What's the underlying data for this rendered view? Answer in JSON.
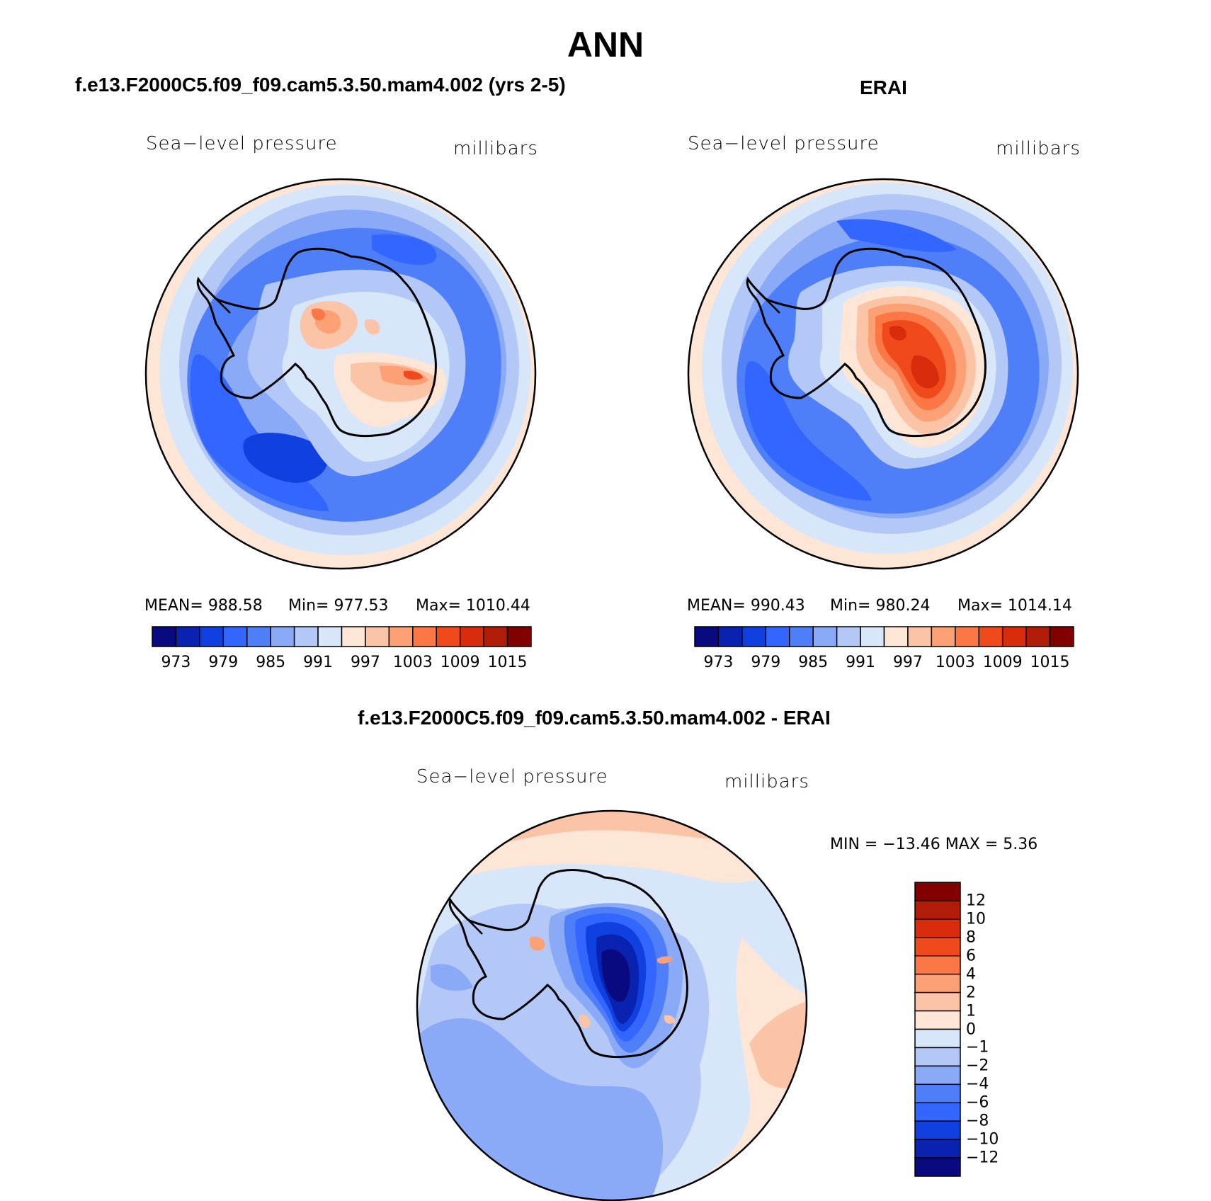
{
  "figure": {
    "title": "ANN"
  },
  "panels": [
    {
      "title": "f.e13.F2000C5.f09_f09.cam5.3.50.mam4.002 (yrs 2-5)",
      "left_label": "Sea−level pressure",
      "right_label": "millibars",
      "stats": {
        "mean": "MEAN= 988.58",
        "min": "Min= 977.53",
        "max": "Max= 1010.44"
      },
      "colorbar_ticks": [
        "973",
        "979",
        "985",
        "991",
        "997",
        "1003",
        "1009",
        "1015"
      ]
    },
    {
      "title": "ERAI",
      "left_label": "Sea−level pressure",
      "right_label": "millibars",
      "stats": {
        "mean": "MEAN= 990.43",
        "min": "Min= 980.24",
        "max": "Max= 1014.14"
      },
      "colorbar_ticks": [
        "973",
        "979",
        "985",
        "991",
        "997",
        "1003",
        "1009",
        "1015"
      ]
    },
    {
      "title": "f.e13.F2000C5.f09_f09.cam5.3.50.mam4.002 - ERAI",
      "left_label": "Sea−level pressure",
      "right_label": "millibars",
      "stats": {
        "minmax": "MIN = −13.46 MAX =    5.36"
      },
      "colorbar_ticks": [
        "12",
        "10",
        "8",
        "6",
        "4",
        "2",
        "1",
        "0",
        "−1",
        "−2",
        "−4",
        "−6",
        "−8",
        "−10",
        "−12"
      ]
    }
  ],
  "colorbars": {
    "abs_colors": [
      "#0a0a80",
      "#0a22b0",
      "#1040e0",
      "#3366ff",
      "#4f7ff8",
      "#8aaaf8",
      "#b4c8f8",
      "#d8e6fa",
      "#fde6d6",
      "#fcc4a6",
      "#fca076",
      "#fb7846",
      "#f04a1c",
      "#d82c0c",
      "#b01c08",
      "#820000"
    ],
    "diff_colors": [
      "#820000",
      "#b01c08",
      "#d82c0c",
      "#f04a1c",
      "#fb7846",
      "#fca076",
      "#fcc4a6",
      "#fde6d6",
      "#d8e6fa",
      "#b4c8f8",
      "#8aaaf8",
      "#4f7ff8",
      "#3366ff",
      "#1040e0",
      "#0a22b0",
      "#0a0a80"
    ]
  }
}
